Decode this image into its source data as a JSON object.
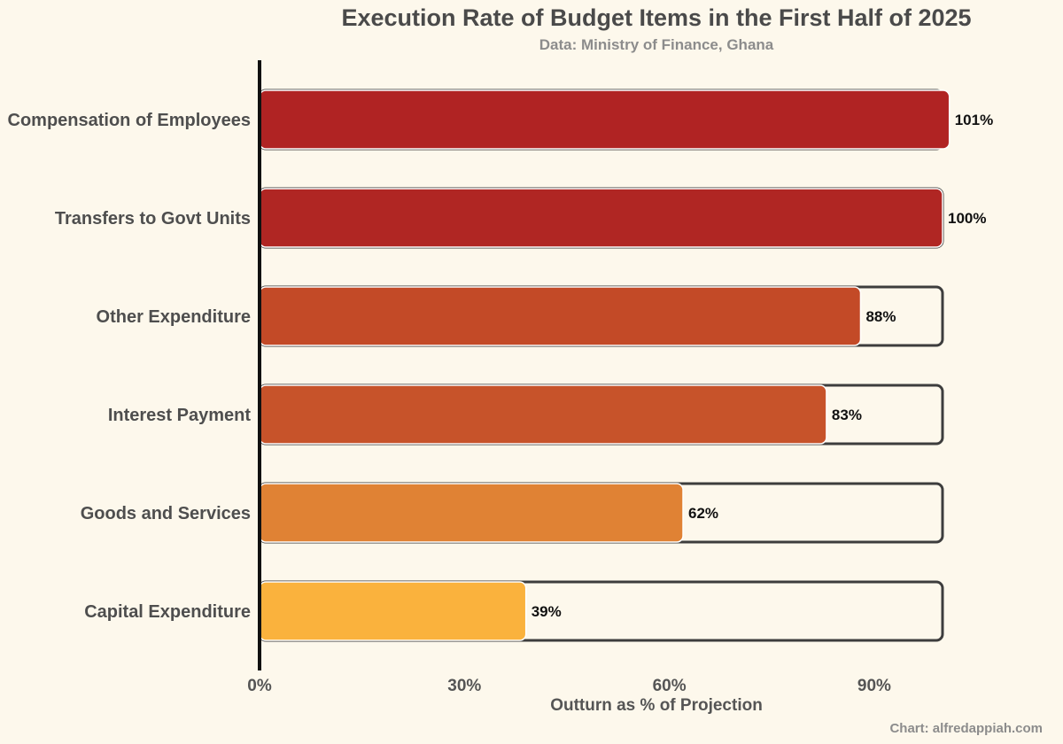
{
  "chart_data": {
    "type": "bar",
    "orientation": "horizontal",
    "title": "Execution Rate of Budget Items in the First Half of 2025",
    "subtitle": "Data: Ministry of Finance, Ghana",
    "xlabel": "Outturn as % of Projection",
    "ylabel": "",
    "caption": "Chart: alfredappiah.com",
    "categories": [
      "Compensation of Employees",
      "Transfers to Govt Units",
      "Other Expenditure",
      "Interest Payment",
      "Goods and Services",
      "Capital Expenditure"
    ],
    "values": [
      101,
      100,
      88,
      83,
      62,
      39
    ],
    "value_labels": [
      "101%",
      "100%",
      "88%",
      "83%",
      "62%",
      "39%"
    ],
    "bar_colors": [
      "#B02323",
      "#B02623",
      "#C34A27",
      "#C7532A",
      "#E08234",
      "#FAB23D"
    ],
    "target_value": 100,
    "xlim": [
      0,
      100
    ],
    "xticks": [
      0,
      30,
      60,
      90
    ],
    "xtick_labels": [
      "0%",
      "30%",
      "60%",
      "90%"
    ],
    "grid": false,
    "legend": "none"
  }
}
